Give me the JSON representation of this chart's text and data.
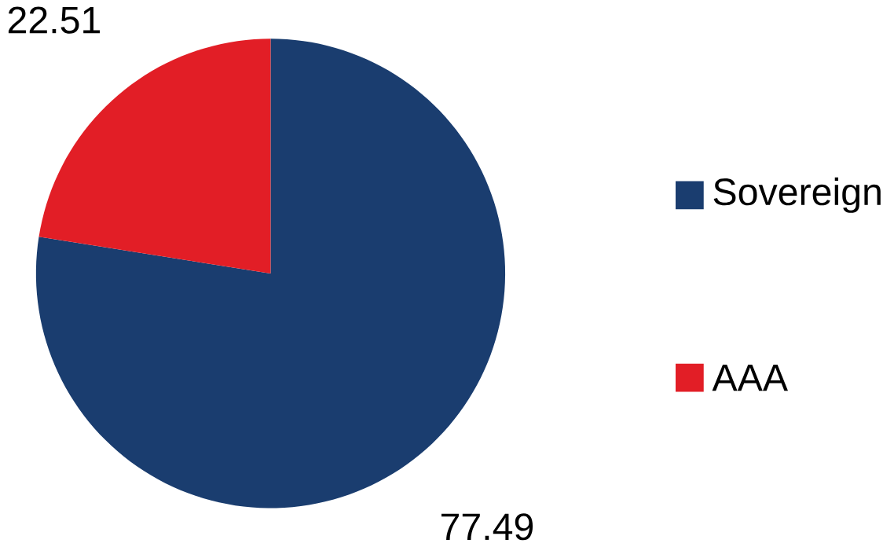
{
  "chart_data": {
    "type": "pie",
    "categories": [
      "Sovereign",
      "AAA"
    ],
    "values": [
      77.49,
      22.51
    ],
    "colors": [
      "#1a3d6f",
      "#e21e26"
    ],
    "data_labels": true,
    "legend": "right"
  }
}
